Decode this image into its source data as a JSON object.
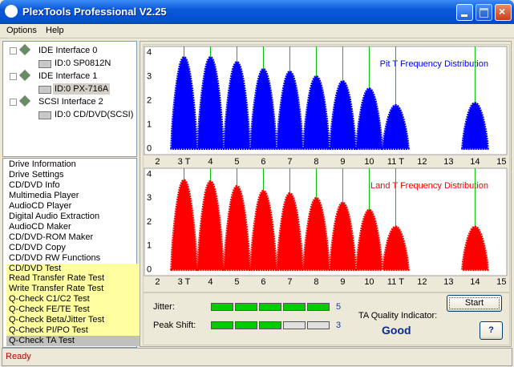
{
  "window": {
    "title": "PlexTools Professional V2.25"
  },
  "menu": [
    "Options",
    "Help"
  ],
  "device_tree": [
    {
      "label": "IDE Interface 0",
      "devices": [
        "ID:0  SP0812N"
      ]
    },
    {
      "label": "IDE Interface 1",
      "devices": [
        "ID:0  PX-716A"
      ]
    },
    {
      "label": "SCSI Interface 2",
      "devices": [
        "ID:0  CD/DVD(SCSI)"
      ]
    }
  ],
  "functions": [
    "Drive Information",
    "Drive Settings",
    "CD/DVD Info",
    "Multimedia Player",
    "AudioCD Player",
    "Digital Audio Extraction",
    "AudioCD Maker",
    "CD/DVD-ROM Maker",
    "CD/DVD Copy",
    "CD/DVD RW Functions",
    "CD/DVD Test",
    "Read Transfer Rate Test",
    "Write Transfer Rate Test",
    "Q-Check C1/C2 Test",
    "Q-Check FE/TE Test",
    "Q-Check Beta/Jitter Test",
    "Q-Check PI/PO Test",
    "Q-Check TA Test"
  ],
  "chart_data": [
    {
      "type": "area",
      "title": "Pit T Frequency Distribution",
      "color": "#0000ff",
      "reference_color": "#00c000",
      "x": [
        3,
        4,
        5,
        6,
        7,
        8,
        9,
        10,
        11,
        14
      ],
      "values": [
        3.8,
        3.8,
        3.6,
        3.3,
        3.2,
        3.0,
        2.8,
        2.5,
        1.8,
        1.9
      ],
      "xlim": [
        1.5,
        15.2
      ],
      "ylim": [
        -0.25,
        4.25
      ],
      "xticks": [
        2,
        {
          "value": 3,
          "label": "3 T"
        },
        4,
        5,
        6,
        7,
        8,
        9,
        10,
        {
          "value": 11,
          "label": "11 T"
        },
        12,
        13,
        14,
        15
      ],
      "yticks": [
        0,
        1,
        2,
        3,
        4
      ]
    },
    {
      "type": "area",
      "title": "Land T Frequency Distribution",
      "color": "#ff0000",
      "reference_color": "#00c000",
      "x": [
        3,
        4,
        5,
        6,
        7,
        8,
        9,
        10,
        11,
        14
      ],
      "values": [
        3.75,
        3.7,
        3.5,
        3.3,
        3.2,
        3.0,
        2.8,
        2.5,
        1.8,
        1.8
      ],
      "xlim": [
        1.5,
        15.2
      ],
      "ylim": [
        -0.25,
        4.25
      ],
      "xticks": [
        2,
        {
          "value": 3,
          "label": "3 T"
        },
        4,
        5,
        6,
        7,
        8,
        9,
        10,
        {
          "value": 11,
          "label": "11 T"
        },
        12,
        13,
        14,
        15
      ],
      "yticks": [
        0,
        1,
        2,
        3,
        4
      ]
    }
  ],
  "meters": [
    {
      "label": "Jitter:",
      "value": 5,
      "max": 5
    },
    {
      "label": "Peak Shift:",
      "value": 3,
      "max": 5
    }
  ],
  "quality": {
    "label": "TA Quality Indicator:",
    "value": "Good"
  },
  "buttons": [
    "Start",
    "?"
  ],
  "status": "Ready"
}
